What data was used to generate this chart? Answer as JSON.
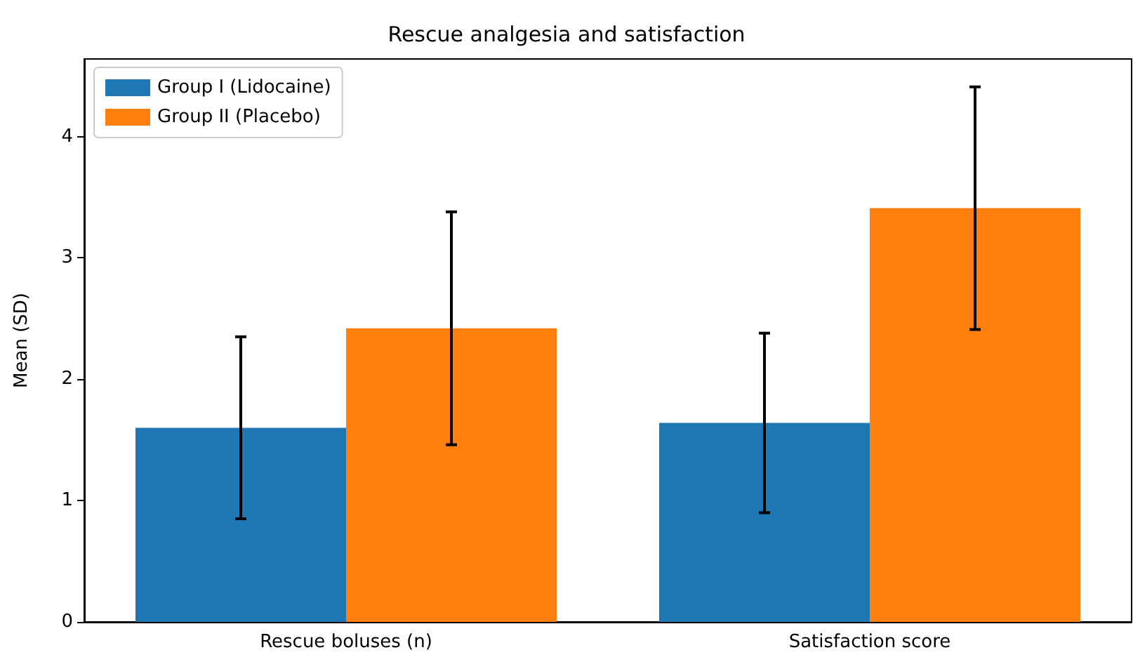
{
  "chart_data": {
    "type": "bar",
    "title": "Rescue analgesia and satisfaction",
    "ylabel": "Mean (SD)",
    "categories": [
      "Rescue boluses (n)",
      "Satisfaction score"
    ],
    "series": [
      {
        "name": "Group I (Lidocaine)",
        "color": "#1f77b4",
        "values": [
          1.6,
          1.64
        ],
        "errors": [
          0.75,
          0.74
        ]
      },
      {
        "name": "Group II (Placebo)",
        "color": "#ff7f0e",
        "values": [
          2.42,
          3.41
        ],
        "errors": [
          0.96,
          1.0
        ]
      }
    ],
    "ylim": [
      0,
      4.64
    ],
    "yticks": [
      0,
      1,
      2,
      3,
      4
    ],
    "grid": false,
    "legend": "top left"
  }
}
